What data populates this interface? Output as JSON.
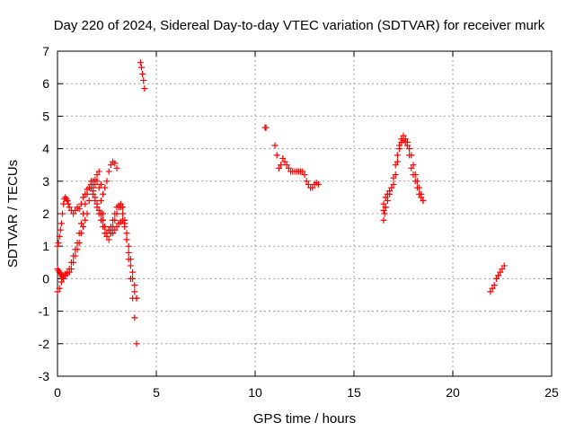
{
  "chart_data": {
    "type": "scatter",
    "title": "Day 220 of 2024, Sidereal Day-to-day VTEC variation (SDTVAR) for receiver murk",
    "xlabel": "GPS time / hours",
    "ylabel": "SDTVAR / TECUs",
    "xlim": [
      0,
      25
    ],
    "ylim": [
      -3,
      7
    ],
    "xticks": [
      0,
      5,
      10,
      15,
      20,
      25
    ],
    "yticks": [
      -3,
      -2,
      -1,
      0,
      1,
      2,
      3,
      4,
      5,
      6,
      7
    ],
    "grid": true,
    "marker": "plus",
    "color": "#ff0000",
    "series": [
      {
        "name": "SDTVAR",
        "x": [
          0.0,
          0.05,
          0.1,
          0.15,
          0.2,
          0.25,
          0.3,
          0.35,
          0.4,
          0.45,
          0.5,
          0.55,
          0.6,
          0.7,
          0.8,
          0.9,
          1.0,
          1.1,
          1.2,
          1.3,
          1.4,
          1.5,
          1.6,
          1.7,
          1.8,
          1.9,
          2.0,
          2.1,
          2.2,
          2.3,
          2.4,
          2.5,
          2.6,
          2.7,
          2.8,
          2.9,
          3.0,
          0.0,
          0.05,
          0.1,
          0.15,
          0.2,
          0.25,
          0.3,
          0.4,
          0.5,
          0.6,
          0.7,
          0.8,
          0.9,
          1.0,
          1.1,
          1.2,
          1.3,
          1.4,
          1.5,
          1.6,
          1.7,
          1.8,
          1.9,
          2.0,
          2.1,
          2.2,
          2.3,
          2.4,
          0.0,
          0.1,
          0.2,
          0.3,
          0.4,
          0.5,
          0.6,
          0.7,
          0.8,
          0.9,
          1.0,
          1.1,
          1.2,
          1.3,
          1.4,
          1.5,
          1.6,
          1.7,
          1.8,
          1.9,
          2.0,
          2.1,
          2.2,
          2.3,
          2.4,
          2.5,
          2.6,
          2.7,
          2.8,
          2.9,
          3.0,
          3.1,
          3.2,
          3.3,
          3.4,
          3.5,
          3.6,
          3.7,
          3.8,
          3.9,
          4.0,
          1.8,
          1.9,
          2.0,
          2.1,
          2.2,
          2.3,
          2.4,
          2.5,
          2.6,
          2.7,
          2.8,
          2.9,
          3.0,
          3.1,
          3.2,
          3.3,
          3.4,
          3.5,
          3.6,
          3.7,
          3.8,
          3.9,
          4.0,
          2.6,
          2.7,
          2.8,
          2.9,
          3.0,
          3.1,
          3.2,
          3.3,
          3.4,
          3.5,
          3.6,
          3.7,
          3.8,
          3.9,
          4.0,
          4.2,
          4.25,
          4.3,
          4.35,
          4.4,
          10.5,
          10.55,
          11.0,
          11.1,
          11.2,
          11.3,
          11.4,
          11.5,
          11.6,
          11.7,
          11.8,
          11.9,
          12.0,
          12.1,
          12.2,
          12.3,
          12.4,
          12.5,
          12.6,
          12.7,
          12.8,
          12.9,
          13.0,
          13.1,
          13.2,
          16.5,
          16.6,
          16.7,
          16.8,
          16.9,
          17.0,
          17.1,
          17.2,
          17.3,
          17.4,
          17.5,
          17.6,
          17.7,
          17.8,
          17.9,
          18.0,
          18.1,
          18.2,
          18.3,
          18.4,
          18.5,
          16.5,
          16.6,
          16.7,
          16.8,
          16.9,
          17.0,
          17.1,
          17.2,
          17.3,
          17.4,
          17.5,
          17.6,
          17.7,
          17.8,
          17.9,
          18.0,
          18.1,
          18.2,
          18.3,
          18.4,
          18.5,
          16.5,
          16.55,
          16.6,
          21.9,
          22.0,
          22.1,
          22.2,
          22.3,
          22.4,
          22.5,
          22.6
        ],
        "y": [
          1.0,
          1.1,
          1.3,
          1.5,
          1.7,
          2.0,
          2.3,
          2.45,
          2.5,
          2.45,
          2.4,
          2.3,
          2.2,
          2.1,
          2.0,
          2.1,
          2.2,
          2.15,
          2.3,
          2.5,
          2.6,
          2.75,
          2.8,
          2.9,
          3.0,
          3.05,
          3.2,
          3.3,
          2.9,
          2.6,
          2.8,
          3.0,
          3.3,
          3.5,
          3.6,
          3.55,
          3.4,
          0.3,
          0.25,
          0.2,
          0.15,
          0.1,
          0.05,
          0.1,
          0.15,
          0.2,
          0.3,
          0.5,
          0.7,
          0.9,
          1.1,
          1.4,
          1.7,
          2.0,
          2.3,
          2.6,
          2.8,
          3.0,
          2.7,
          2.5,
          2.3,
          2.1,
          2.0,
          1.8,
          1.6,
          -0.4,
          -0.3,
          -0.1,
          0.0,
          0.1,
          0.15,
          0.2,
          0.3,
          0.5,
          0.7,
          0.9,
          1.1,
          1.4,
          1.6,
          1.8,
          2.0,
          2.4,
          2.8,
          2.6,
          2.4,
          2.2,
          2.0,
          1.8,
          1.6,
          1.4,
          1.3,
          1.2,
          1.4,
          1.6,
          1.8,
          2.0,
          2.2,
          2.3,
          2.2,
          1.8,
          1.2,
          0.6,
          0.0,
          -0.6,
          -1.2,
          -2.0,
          2.8,
          2.9,
          3.0,
          2.8,
          2.4,
          2.0,
          1.6,
          1.4,
          1.5,
          1.6,
          1.8,
          2.0,
          2.2,
          2.25,
          2.2,
          2.0,
          1.6,
          1.2,
          0.8,
          0.4,
          0.0,
          -0.4,
          -0.6,
          1.5,
          1.4,
          1.4,
          1.5,
          1.6,
          1.7,
          1.75,
          1.8,
          1.7,
          1.4,
          1.0,
          0.6,
          0.2,
          -0.2,
          -0.6,
          6.65,
          6.5,
          6.3,
          6.1,
          5.85,
          4.65,
          4.65,
          4.1,
          3.8,
          3.4,
          3.5,
          3.7,
          3.6,
          3.5,
          3.4,
          3.3,
          3.3,
          3.3,
          3.3,
          3.3,
          3.3,
          3.3,
          3.2,
          3.0,
          2.9,
          2.8,
          2.8,
          2.9,
          2.95,
          2.9,
          2.3,
          2.5,
          2.6,
          2.7,
          2.8,
          2.9,
          3.2,
          3.6,
          4.0,
          4.3,
          4.4,
          4.3,
          4.2,
          3.8,
          3.4,
          3.2,
          3.0,
          2.8,
          2.6,
          2.5,
          2.4,
          2.1,
          2.2,
          2.4,
          2.6,
          2.8,
          3.1,
          3.5,
          3.8,
          4.1,
          4.2,
          4.25,
          4.2,
          4.1,
          4.0,
          3.8,
          3.5,
          3.2,
          3.0,
          2.8,
          2.6,
          2.4,
          1.8,
          2.0,
          2.2,
          -0.4,
          -0.3,
          -0.2,
          0.0,
          0.1,
          0.2,
          0.3,
          0.4
        ]
      }
    ]
  }
}
